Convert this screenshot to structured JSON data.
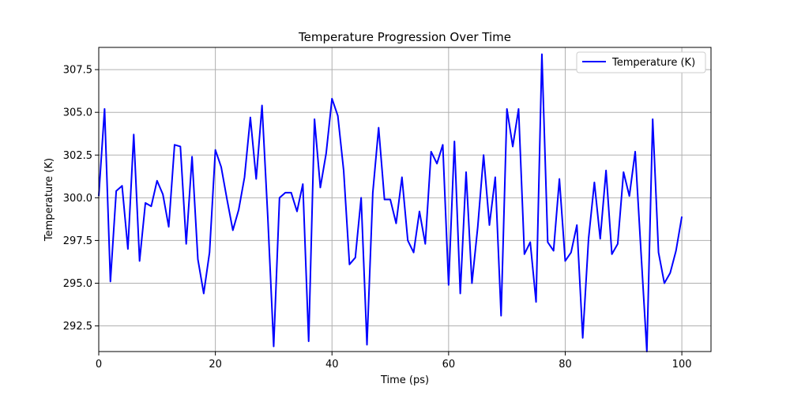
{
  "chart_data": {
    "type": "line",
    "title": "Temperature Progression Over Time",
    "xlabel": "Time (ps)",
    "ylabel": "Temperature (K)",
    "xlim": [
      0,
      105
    ],
    "ylim": [
      291.0,
      308.8
    ],
    "xticks": [
      0,
      20,
      40,
      60,
      80,
      100
    ],
    "yticks": [
      292.5,
      295.0,
      297.5,
      300.0,
      302.5,
      305.0,
      307.5
    ],
    "xtick_labels": [
      "0",
      "20",
      "40",
      "60",
      "80",
      "100"
    ],
    "ytick_labels": [
      "292.5",
      "295.0",
      "297.5",
      "300.0",
      "302.5",
      "305.0",
      "307.5"
    ],
    "grid": true,
    "legend_position": "top-right",
    "series": [
      {
        "name": "Temperature (K)",
        "color": "#0000ff",
        "x": [
          0,
          1,
          2,
          3,
          4,
          5,
          6,
          7,
          8,
          9,
          10,
          11,
          12,
          13,
          14,
          15,
          16,
          17,
          18,
          19,
          20,
          21,
          22,
          23,
          24,
          25,
          26,
          27,
          28,
          29,
          30,
          31,
          32,
          33,
          34,
          35,
          36,
          37,
          38,
          39,
          40,
          41,
          42,
          43,
          44,
          45,
          46,
          47,
          48,
          49,
          50,
          51,
          52,
          53,
          54,
          55,
          56,
          57,
          58,
          59,
          60,
          61,
          62,
          63,
          64,
          65,
          66,
          67,
          68,
          69,
          70,
          71,
          72,
          73,
          74,
          75,
          76,
          77,
          78,
          79,
          80,
          81,
          82,
          83,
          84,
          85,
          86,
          87,
          88,
          89,
          90,
          91,
          92,
          93,
          94,
          95,
          96,
          97,
          98,
          99,
          100
        ],
        "y": [
          300.1,
          305.2,
          295.1,
          300.4,
          300.7,
          297.0,
          303.7,
          296.3,
          299.7,
          299.5,
          301.0,
          300.2,
          298.3,
          303.1,
          303.0,
          297.3,
          302.4,
          296.4,
          294.4,
          296.8,
          302.8,
          301.8,
          299.9,
          298.1,
          299.3,
          301.2,
          304.7,
          301.1,
          305.4,
          298.8,
          291.3,
          300.0,
          300.3,
          300.3,
          299.2,
          300.8,
          291.6,
          304.6,
          300.6,
          302.6,
          305.8,
          304.8,
          301.6,
          296.1,
          296.5,
          300.0,
          291.4,
          300.3,
          304.1,
          299.9,
          299.9,
          298.5,
          301.2,
          297.5,
          296.8,
          299.2,
          297.3,
          302.7,
          302.0,
          303.1,
          294.9,
          303.3,
          294.4,
          301.5,
          295.0,
          298.3,
          302.5,
          298.4,
          301.2,
          293.1,
          305.2,
          303.0,
          305.2,
          296.7,
          297.4,
          293.9,
          308.4,
          297.4,
          296.9,
          301.1,
          296.3,
          296.8,
          298.4,
          291.8,
          297.6,
          300.9,
          297.6,
          301.6,
          296.7,
          297.3,
          301.5,
          300.1,
          302.7,
          296.8,
          291.0,
          304.6,
          296.8,
          295.0,
          295.6,
          296.9,
          298.9
        ]
      }
    ]
  }
}
